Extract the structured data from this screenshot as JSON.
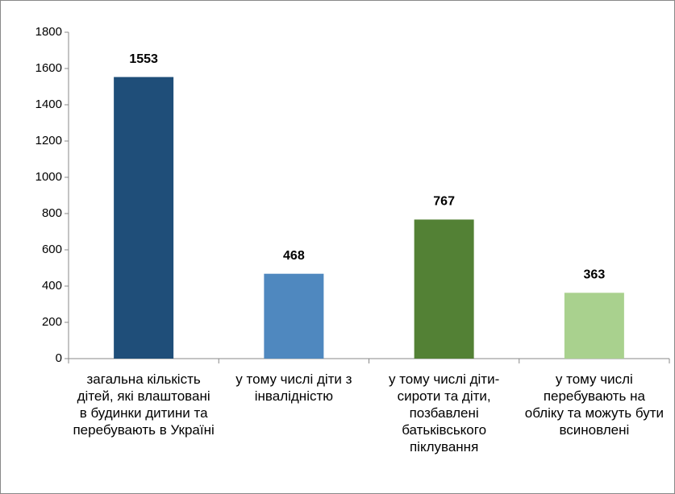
{
  "chart_data": {
    "type": "bar",
    "categories": [
      "загальна кількість дітей, які влаштовані в будинки дитини та перебувають в Україні",
      "у тому числі діти з інвалідністю",
      "у тому числі діти-сироти та діти, позбавлені батьківського піклування",
      "у тому числі перебувають на обліку та можуть бути всиновлені"
    ],
    "values": [
      1553,
      468,
      767,
      363
    ],
    "colors": [
      "#1f4e79",
      "#4f88bf",
      "#538135",
      "#a9d18e"
    ],
    "ylim": [
      0,
      1800
    ],
    "yticks": [
      0,
      200,
      400,
      600,
      800,
      1000,
      1200,
      1400,
      1600,
      1800
    ],
    "grid": false
  }
}
